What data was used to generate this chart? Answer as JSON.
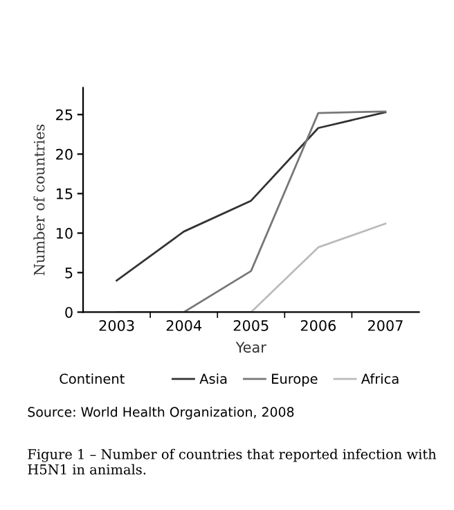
{
  "chart_data": {
    "type": "line",
    "xlabel": "Year",
    "ylabel": "Number of countries",
    "legend_title": "Continent",
    "categories": [
      "2003",
      "2004",
      "2005",
      "2006",
      "2007"
    ],
    "series": [
      {
        "name": "Asia",
        "color": "#333333",
        "values": [
          4,
          10.2,
          14.1,
          23.3,
          25.3
        ]
      },
      {
        "name": "Europe",
        "color": "#777777",
        "values": [
          0,
          0,
          5.2,
          25.2,
          25.4
        ]
      },
      {
        "name": "Africa",
        "color": "#bbbbbb",
        "values": [
          0,
          0,
          0,
          8.2,
          11.2
        ]
      }
    ],
    "ylim": [
      0,
      28.4
    ],
    "yticks": [
      0,
      5,
      10,
      15,
      20,
      25
    ],
    "grid": false,
    "legend": "bottom",
    "marker": "none",
    "line_style": "solid",
    "annotations": [
      "Source: World Health Organization, 2008",
      "Figure 1 – Number of countries that reported infection with H5N1 in animals."
    ]
  }
}
